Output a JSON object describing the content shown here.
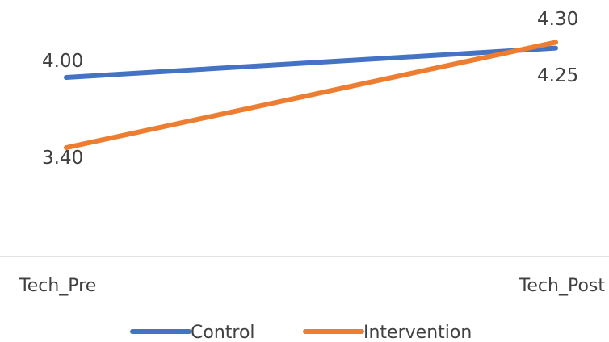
{
  "chart_data": {
    "type": "line",
    "categories": [
      "Tech_Pre",
      "Tech_Post"
    ],
    "series": [
      {
        "name": "Control",
        "values": [
          4.0,
          4.25
        ],
        "labels": [
          "4.00",
          "4.25"
        ],
        "color": "#4472C4"
      },
      {
        "name": "Intervention",
        "values": [
          3.4,
          4.3
        ],
        "labels": [
          "3.40",
          "4.30"
        ],
        "color": "#ED7D31"
      }
    ],
    "ylim": [
      2.7,
      4.5
    ],
    "grid": false,
    "legend": "bottom"
  }
}
